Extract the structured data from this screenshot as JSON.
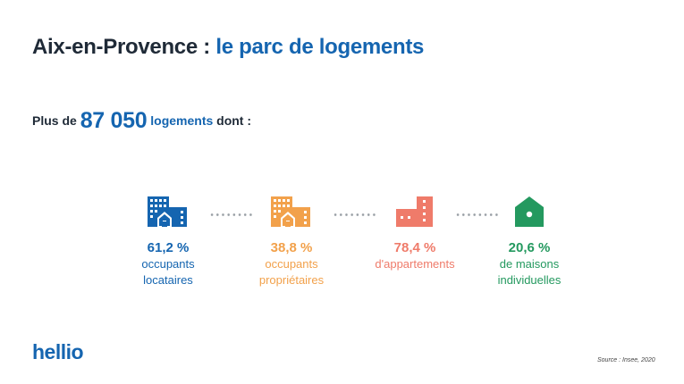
{
  "title": {
    "part1": "Aix-en-Provence : ",
    "part2": "le parc de logements"
  },
  "subtitle": {
    "prefix": "Plus de ",
    "number": "87 050",
    "unit": " logements",
    "suffix": " dont :"
  },
  "stats": [
    {
      "icon": "buildings-icon",
      "color": "#1565b0",
      "value": "61,2 %",
      "line1": "occupants",
      "line2": "locataires"
    },
    {
      "icon": "buildings-icon",
      "color": "#f2a14b",
      "value": "38,8 %",
      "line1": "occupants",
      "line2": "propriétaires"
    },
    {
      "icon": "apartment-icon",
      "color": "#ef7b6a",
      "value": "78,4 %",
      "line1": "d'appartements",
      "line2": ""
    },
    {
      "icon": "house-icon",
      "color": "#24995f",
      "value": "20,6 %",
      "line1": "de maisons",
      "line2": "individuelles"
    }
  ],
  "logo": "hellio",
  "source": "Source : Insee, 2020"
}
